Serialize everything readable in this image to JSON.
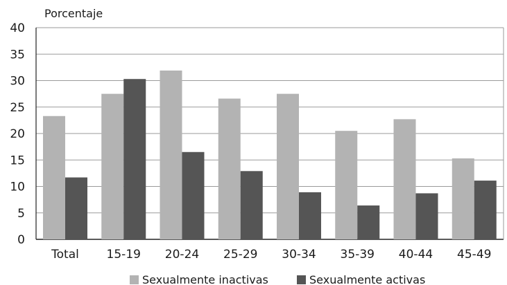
{
  "chart_data": {
    "type": "bar",
    "title": "",
    "xlabel": "",
    "ylabel": "Porcentaje",
    "ylim": [
      0,
      40
    ],
    "yticks": [
      0,
      5,
      10,
      15,
      20,
      25,
      30,
      35,
      40
    ],
    "grid": true,
    "legend_position": "bottom",
    "categories": [
      "Total",
      "15-19",
      "20-24",
      "25-29",
      "30-34",
      "35-39",
      "40-44",
      "45-49"
    ],
    "series": [
      {
        "name": "Sexualmente inactivas",
        "color": "#b3b3b3",
        "values": [
          23.3,
          27.5,
          31.9,
          26.6,
          27.5,
          20.5,
          22.7,
          15.3
        ]
      },
      {
        "name": "Sexualmente activas",
        "color": "#555555",
        "values": [
          11.7,
          30.3,
          16.5,
          12.9,
          8.9,
          6.4,
          8.7,
          11.1
        ]
      }
    ]
  }
}
